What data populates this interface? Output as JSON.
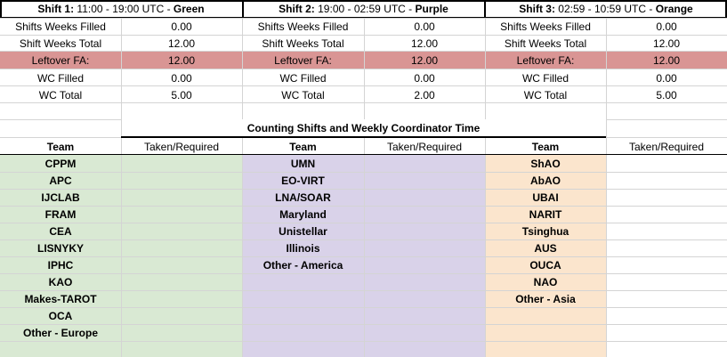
{
  "shifts": [
    {
      "title_prefix": "Shift 1:",
      "time": " 11:00 - 19:00 UTC - ",
      "color_name": "Green"
    },
    {
      "title_prefix": "Shift 2:",
      "time": " 19:00 - 02:59 UTC - ",
      "color_name": "Purple"
    },
    {
      "title_prefix": "Shift 3:",
      "time": " 02:59 - 10:59 UTC - ",
      "color_name": "Orange"
    }
  ],
  "summary_rows": [
    {
      "label": "Shifts Weeks Filled",
      "values": [
        "0.00",
        "0.00",
        "0.00"
      ]
    },
    {
      "label": "Shift Weeks Total",
      "values": [
        "12.00",
        "12.00",
        "12.00"
      ]
    },
    {
      "label": "Leftover FA:",
      "values": [
        "12.00",
        "12.00",
        "12.00"
      ]
    },
    {
      "label": "WC Filled",
      "values": [
        "0.00",
        "0.00",
        "0.00"
      ]
    },
    {
      "label": "WC Total",
      "values": [
        "5.00",
        "2.00",
        "5.00"
      ]
    }
  ],
  "section_title": "Counting Shifts and Weekly Coordinator Time",
  "col_headers": {
    "team": "Team",
    "taken": "Taken/Required"
  },
  "teams": {
    "shift1": [
      "CPPM",
      "APC",
      "IJCLAB",
      "FRAM",
      "CEA",
      "LISNYKY",
      "IPHC",
      "KAO",
      "Makes-TAROT",
      "OCA",
      "Other - Europe"
    ],
    "shift2": [
      "UMN",
      "EO-VIRT",
      "LNA/SOAR",
      "Maryland",
      "Unistellar",
      "Illinois",
      "Other - America"
    ],
    "shift3": [
      "ShAO",
      "AbAO",
      "UBAI",
      "NARIT",
      "Tsinghua",
      "AUS",
      "OUCA",
      "NAO",
      "Other - Asia"
    ]
  },
  "colors": {
    "green": "#d9e9d3",
    "purple": "#d9d2e9",
    "orange": "#fbe5cd",
    "leftover": "#d99594"
  }
}
